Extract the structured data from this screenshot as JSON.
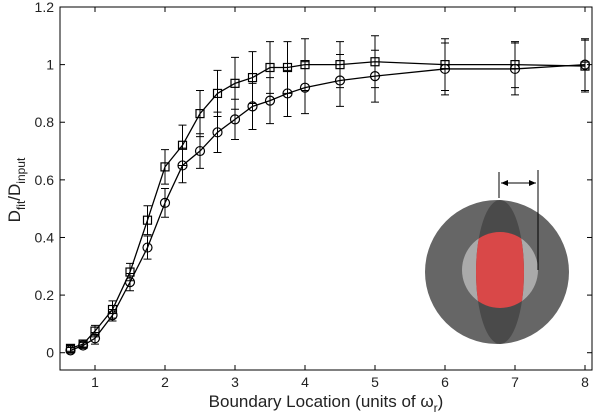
{
  "chart_data": {
    "type": "line",
    "xlabel": [
      "Boundary Location (units of ω",
      "r",
      ")"
    ],
    "ylabel": [
      "D",
      "fit",
      "/D",
      "input"
    ],
    "x": [
      0.65,
      0.83,
      1,
      1.25,
      1.5,
      1.75,
      2,
      2.25,
      2.5,
      2.75,
      3,
      3.25,
      3.5,
      3.75,
      4,
      4.5,
      5,
      6,
      7,
      8
    ],
    "series": [
      {
        "marker": "square",
        "color": "#000000",
        "values": [
          0.015,
          0.03,
          0.075,
          0.15,
          0.28,
          0.46,
          0.645,
          0.72,
          0.83,
          0.9,
          0.935,
          0.955,
          0.99,
          0.99,
          1.0,
          1.0,
          1.01,
          1.0,
          1.0,
          0.995
        ],
        "errors": [
          0.01,
          0.01,
          0.02,
          0.03,
          0.03,
          0.05,
          0.06,
          0.07,
          0.08,
          0.08,
          0.09,
          0.09,
          0.09,
          0.09,
          0.09,
          0.08,
          0.09,
          0.09,
          0.08,
          0.09
        ]
      },
      {
        "marker": "circle",
        "color": "#000000",
        "values": [
          0.008,
          0.025,
          0.05,
          0.13,
          0.245,
          0.365,
          0.52,
          0.65,
          0.7,
          0.765,
          0.81,
          0.855,
          0.875,
          0.9,
          0.92,
          0.945,
          0.96,
          0.985,
          0.985,
          1.0
        ],
        "errors": [
          0.01,
          0.01,
          0.02,
          0.02,
          0.03,
          0.04,
          0.05,
          0.06,
          0.06,
          0.07,
          0.07,
          0.08,
          0.08,
          0.08,
          0.09,
          0.09,
          0.09,
          0.09,
          0.09,
          0.09
        ]
      }
    ],
    "xlim": [
      0.5,
      8.1
    ],
    "xticks": [
      1,
      2,
      3,
      4,
      5,
      6,
      7,
      8
    ],
    "ylim": [
      -0.06,
      1.2
    ],
    "yticks": [
      0,
      0.2,
      0.4,
      0.6,
      0.8,
      1,
      1.2
    ]
  }
}
